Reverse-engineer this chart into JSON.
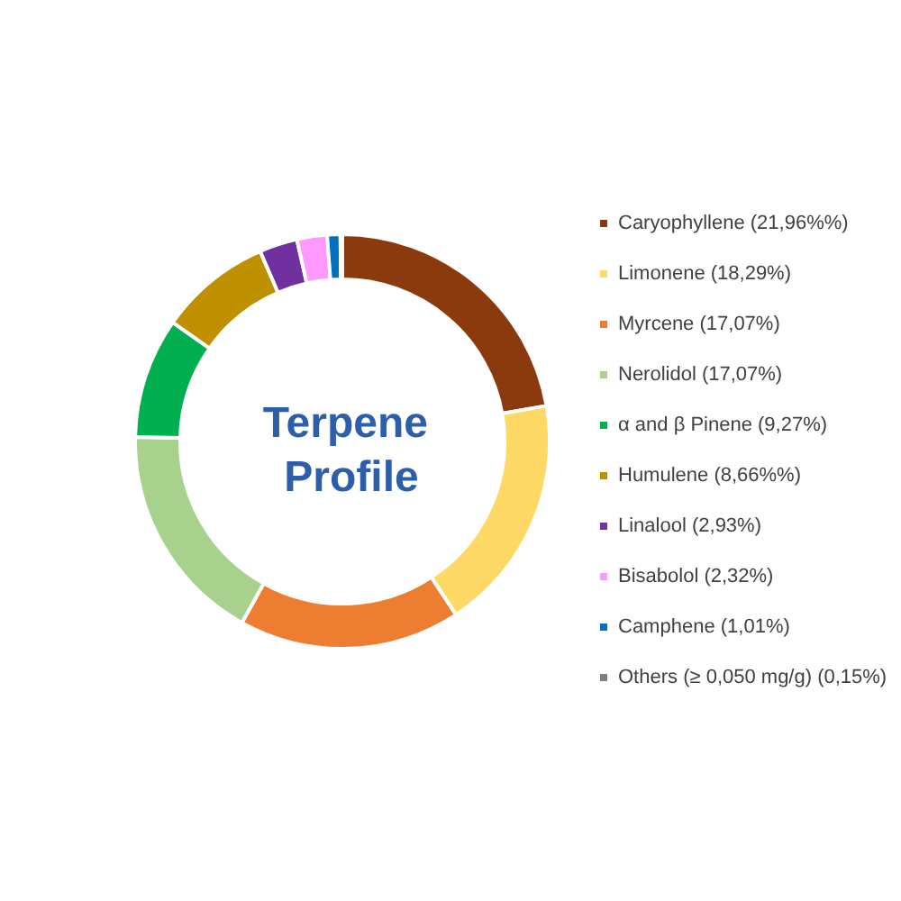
{
  "chart_data": {
    "type": "donut",
    "title": "Terpene Profile",
    "categories": [
      "Caryophyllene (21,96%%)",
      "Limonene (18,29%)",
      "Myrcene (17,07%)",
      "Nerolidol (17,07%)",
      "α and β Pinene (9,27%)",
      "Humulene (8,66%%)",
      "Linalool (2,93%)",
      "Bisabolol (2,32%)",
      "Camphene (1,01%)",
      "Others (≥ 0,050 mg/g) (0,15%)"
    ],
    "values": [
      21.96,
      18.29,
      17.07,
      17.07,
      9.27,
      8.66,
      2.93,
      2.32,
      1.01,
      0.15
    ],
    "colors": [
      "#8b3a0e",
      "#ffd966",
      "#ed7d31",
      "#a9d18e",
      "#00b050",
      "#bf9000",
      "#7030a0",
      "#ff99ff",
      "#0070c0",
      "#7f7f7f"
    ],
    "legend": "right"
  }
}
